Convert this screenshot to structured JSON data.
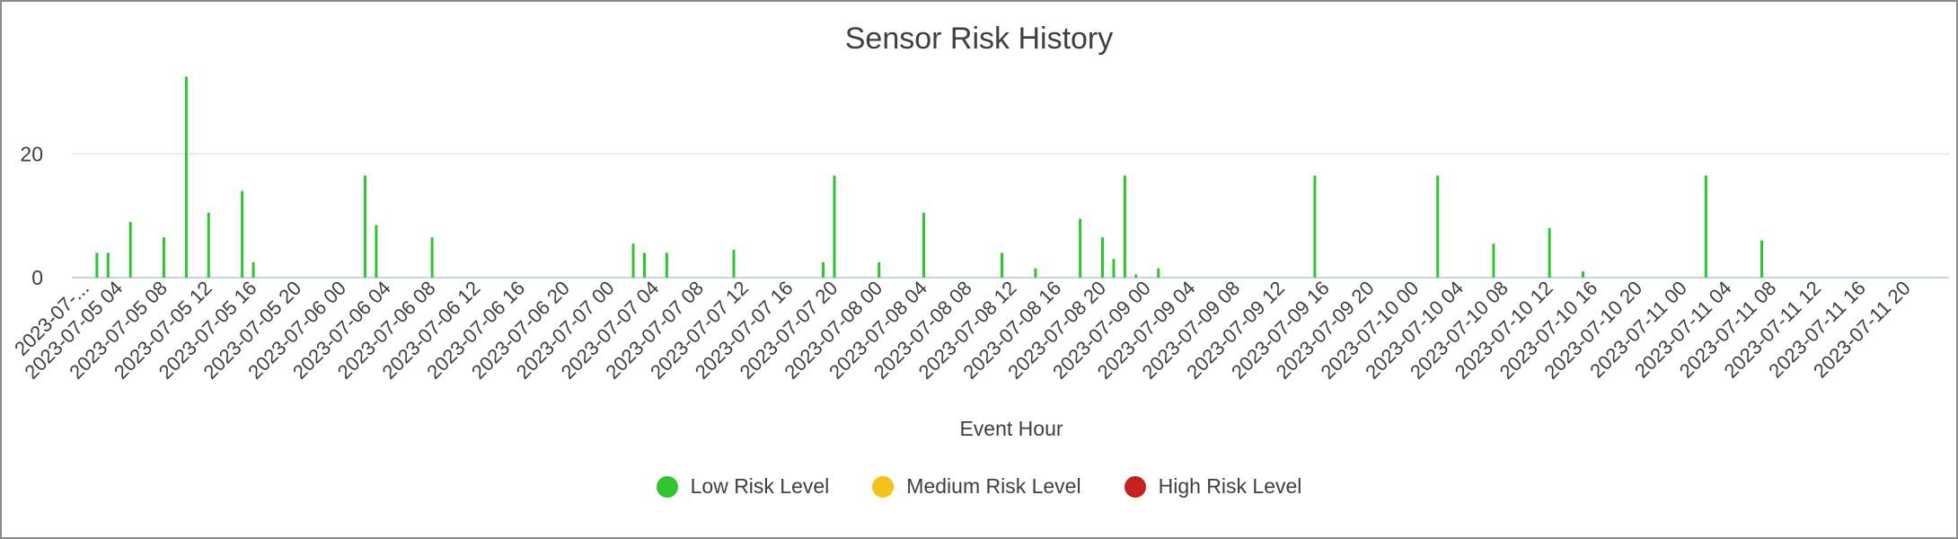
{
  "chart_data": {
    "type": "bar",
    "title": "Sensor Risk History",
    "xlabel": "Event Hour",
    "ylabel": "",
    "ylim": [
      0,
      34
    ],
    "yticks": [
      0,
      20
    ],
    "grid": true,
    "legend_position": "bottom",
    "x_range": [
      "2023-07-05 00",
      "2023-07-11 23"
    ],
    "x_tick_labels": [
      "2023-07-...",
      "2023-07-05 04",
      "2023-07-05 08",
      "2023-07-05 12",
      "2023-07-05 16",
      "2023-07-05 20",
      "2023-07-06 00",
      "2023-07-06 04",
      "2023-07-06 08",
      "2023-07-06 12",
      "2023-07-06 16",
      "2023-07-06 20",
      "2023-07-07 00",
      "2023-07-07 04",
      "2023-07-07 08",
      "2023-07-07 12",
      "2023-07-07 16",
      "2023-07-07 20",
      "2023-07-08 00",
      "2023-07-08 04",
      "2023-07-08 08",
      "2023-07-08 12",
      "2023-07-08 16",
      "2023-07-08 20",
      "2023-07-09 00",
      "2023-07-09 04",
      "2023-07-09 08",
      "2023-07-09 12",
      "2023-07-09 16",
      "2023-07-09 20",
      "2023-07-10 00",
      "2023-07-10 04",
      "2023-07-10 08",
      "2023-07-10 12",
      "2023-07-10 16",
      "2023-07-10 20",
      "2023-07-11 00",
      "2023-07-11 04",
      "2023-07-11 08",
      "2023-07-11 12",
      "2023-07-11 16",
      "2023-07-11 20"
    ],
    "series": [
      {
        "name": "Low Risk Level",
        "color": "#2ec52e",
        "points": [
          {
            "x": "2023-07-05 02",
            "y": 4
          },
          {
            "x": "2023-07-05 03",
            "y": 4
          },
          {
            "x": "2023-07-05 05",
            "y": 9
          },
          {
            "x": "2023-07-05 08",
            "y": 6.5
          },
          {
            "x": "2023-07-05 10",
            "y": 32.5
          },
          {
            "x": "2023-07-05 12",
            "y": 10.5
          },
          {
            "x": "2023-07-05 15",
            "y": 14
          },
          {
            "x": "2023-07-05 16",
            "y": 2.5
          },
          {
            "x": "2023-07-06 02",
            "y": 16.5
          },
          {
            "x": "2023-07-06 03",
            "y": 8.5
          },
          {
            "x": "2023-07-06 08",
            "y": 6.5
          },
          {
            "x": "2023-07-07 02",
            "y": 5.5
          },
          {
            "x": "2023-07-07 03",
            "y": 4
          },
          {
            "x": "2023-07-07 05",
            "y": 4
          },
          {
            "x": "2023-07-07 11",
            "y": 4.5
          },
          {
            "x": "2023-07-07 19",
            "y": 2.5
          },
          {
            "x": "2023-07-07 20",
            "y": 16.5
          },
          {
            "x": "2023-07-08 00",
            "y": 2.5
          },
          {
            "x": "2023-07-08 04",
            "y": 10.5
          },
          {
            "x": "2023-07-08 11",
            "y": 4
          },
          {
            "x": "2023-07-08 14",
            "y": 1.5
          },
          {
            "x": "2023-07-08 18",
            "y": 9.5
          },
          {
            "x": "2023-07-08 20",
            "y": 6.5
          },
          {
            "x": "2023-07-08 21",
            "y": 3
          },
          {
            "x": "2023-07-08 22",
            "y": 16.5
          },
          {
            "x": "2023-07-08 23",
            "y": 0.5
          },
          {
            "x": "2023-07-09 01",
            "y": 1.5
          },
          {
            "x": "2023-07-09 15",
            "y": 16.5
          },
          {
            "x": "2023-07-10 02",
            "y": 16.5
          },
          {
            "x": "2023-07-10 07",
            "y": 5.5
          },
          {
            "x": "2023-07-10 12",
            "y": 8
          },
          {
            "x": "2023-07-10 15",
            "y": 1
          },
          {
            "x": "2023-07-11 02",
            "y": 16.5
          },
          {
            "x": "2023-07-11 07",
            "y": 6
          }
        ]
      },
      {
        "name": "Medium Risk Level",
        "color": "#f5c21b",
        "points": []
      },
      {
        "name": "High Risk Level",
        "color": "#c42221",
        "points": []
      }
    ]
  }
}
